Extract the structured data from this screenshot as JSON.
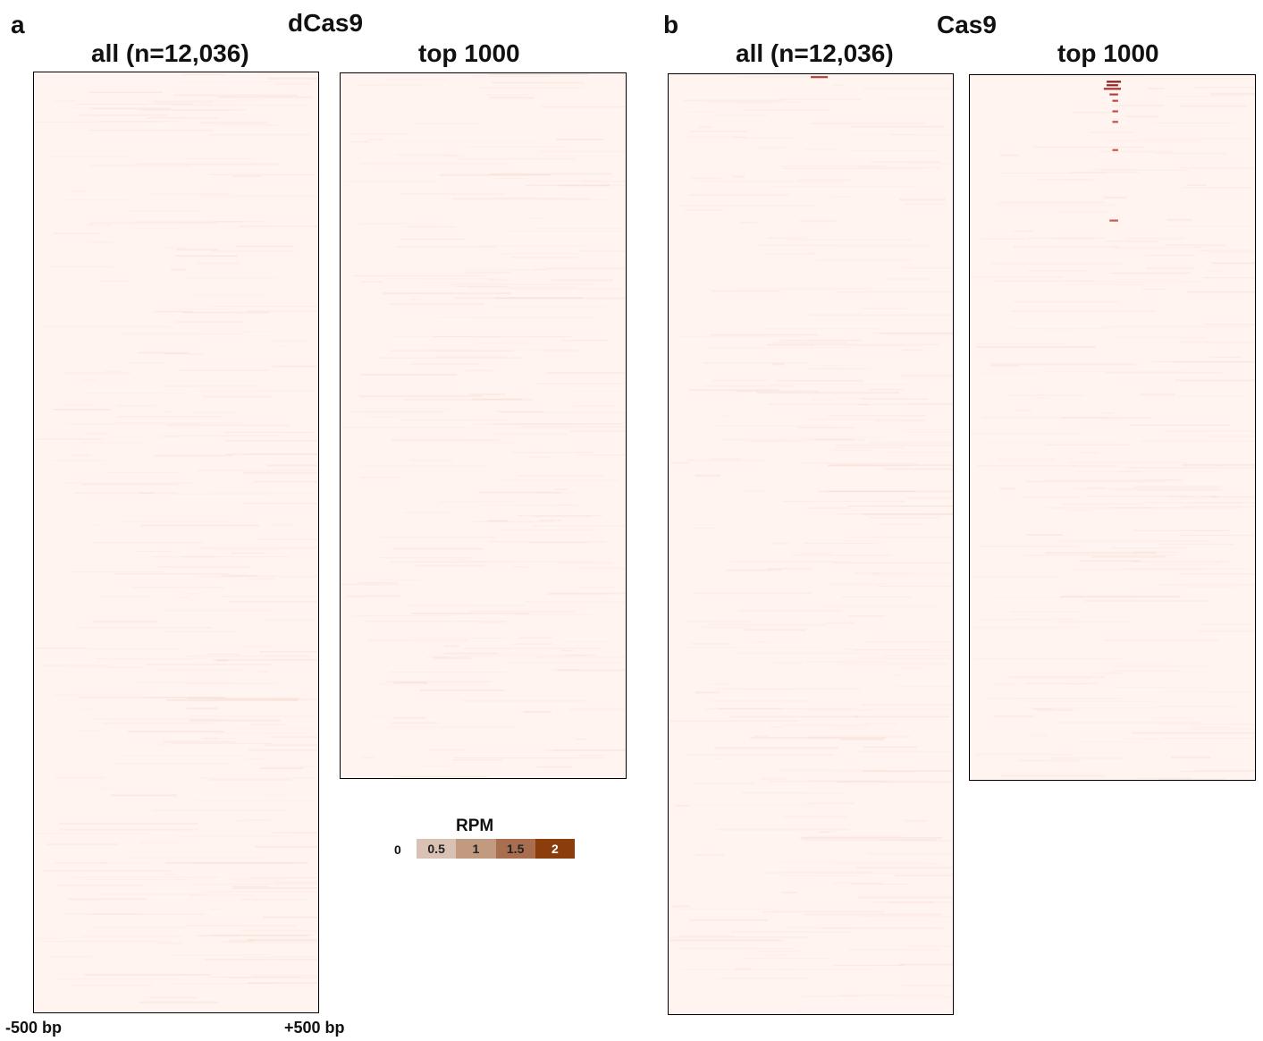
{
  "panels": [
    {
      "letter": "a",
      "title": "dCas9",
      "subplots": [
        {
          "title": "all (n=12,036)",
          "intensity": "faint",
          "hot_rows": []
        },
        {
          "title": "top 1000",
          "intensity": "faint",
          "hot_rows": []
        }
      ]
    },
    {
      "letter": "b",
      "title": "Cas9",
      "subplots": [
        {
          "title": "all (n=12,036)",
          "intensity": "faint",
          "hot_rows": [
            {
              "row_frac": 0.002,
              "x_start": 0.5,
              "x_end": 0.56,
              "value": 1.2
            }
          ]
        },
        {
          "title": "top 1000",
          "intensity": "faint",
          "hot_rows": [
            {
              "row_frac": 0.008,
              "x_start": 0.48,
              "x_end": 0.53,
              "value": 2.0
            },
            {
              "row_frac": 0.013,
              "x_start": 0.48,
              "x_end": 0.52,
              "value": 1.8
            },
            {
              "row_frac": 0.018,
              "x_start": 0.47,
              "x_end": 0.53,
              "value": 1.5
            },
            {
              "row_frac": 0.026,
              "x_start": 0.49,
              "x_end": 0.52,
              "value": 1.2
            },
            {
              "row_frac": 0.035,
              "x_start": 0.5,
              "x_end": 0.52,
              "value": 1.0
            },
            {
              "row_frac": 0.05,
              "x_start": 0.5,
              "x_end": 0.52,
              "value": 0.9
            },
            {
              "row_frac": 0.065,
              "x_start": 0.5,
              "x_end": 0.52,
              "value": 0.8
            },
            {
              "row_frac": 0.105,
              "x_start": 0.5,
              "x_end": 0.52,
              "value": 0.7
            },
            {
              "row_frac": 0.205,
              "x_start": 0.49,
              "x_end": 0.52,
              "value": 0.7
            }
          ]
        }
      ]
    }
  ],
  "chart_data": {
    "type": "heatmap",
    "x_axis": {
      "left_label": "-500 bp",
      "right_label": "+500 bp"
    },
    "colorbar": {
      "title": "RPM",
      "min_label": "0",
      "ticks": [
        "0.5",
        "1",
        "1.5",
        "2"
      ],
      "range": [
        0,
        2
      ],
      "colors": [
        "#d9c1b4",
        "#c29a80",
        "#a86e4f",
        "#8b3d0c"
      ]
    },
    "heatmap_base_color": "#fff4f0",
    "heatmap_hot_color": "#8b1a1a"
  }
}
